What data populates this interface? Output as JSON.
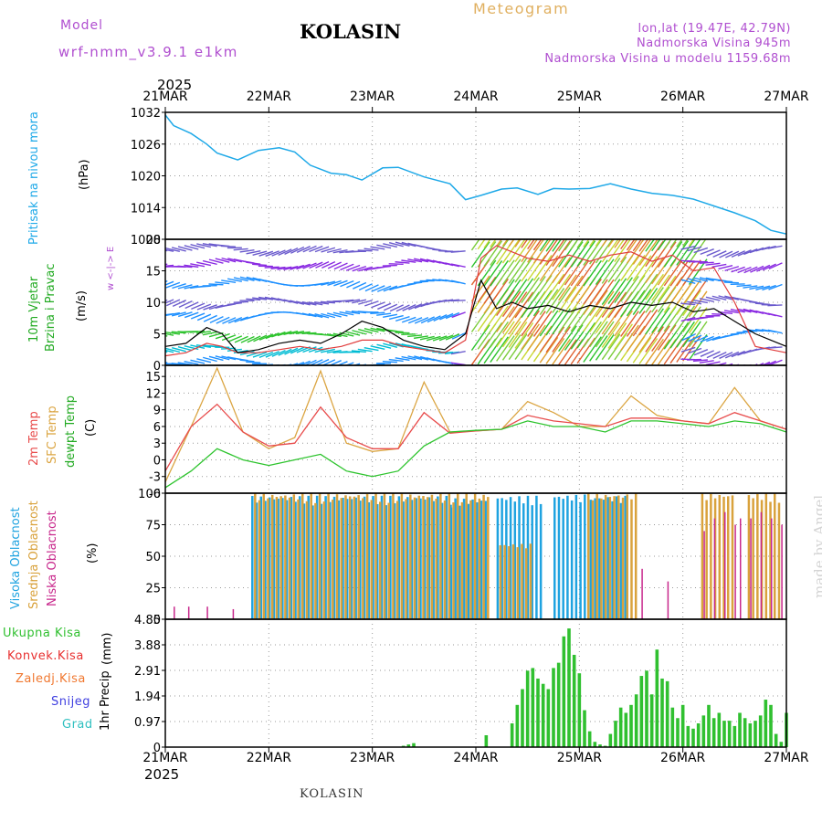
{
  "header": {
    "model_label": "Model",
    "model_name": "wrf-nmm_v3.9.1 e1km",
    "location": "KOLASIN",
    "chart_title": "Meteogram",
    "coords": "lon,lat (19.47E, 42.79N)",
    "elevation": "Nadmorska Visina 945m",
    "model_elevation": "Nadmorska Visina u modelu 1159.68m"
  },
  "time_axis": {
    "year": "2025",
    "ticks": [
      "21MAR",
      "22MAR",
      "23MAR",
      "24MAR",
      "25MAR",
      "26MAR",
      "27MAR"
    ]
  },
  "footer": {
    "location": "KOLASIN"
  },
  "watermark": "made by Angel",
  "colors": {
    "pressure": "#1fa9e8",
    "wind_speed": "#000000",
    "gust": "#e03c3c",
    "temp_2m": "#e84c4c",
    "temp_sfc": "#dba542",
    "dewpoint": "#2ec42e",
    "cloud_high": "#1fa3e0",
    "cloud_mid": "#d9a23c",
    "cloud_low": "#c8288c",
    "precip_total": "#30c030",
    "precip_conv": "#e83030",
    "precip_frozen": "#f07830",
    "snow": "#4040e0",
    "hail": "#30c0c0"
  },
  "chart_data": [
    {
      "type": "line",
      "panel": "pressure",
      "ylabel": "Pritisak na nivou mora",
      "unit": "(hPa)",
      "ylim": [
        1008,
        1032
      ],
      "yticks": [
        "1032",
        "1026",
        "1020",
        "1014",
        "1008"
      ],
      "x_days": [
        0,
        0.08,
        0.25,
        0.4,
        0.5,
        0.7,
        0.9,
        1.1,
        1.25,
        1.4,
        1.6,
        1.75,
        1.9,
        2.1,
        2.25,
        2.5,
        2.75,
        2.9,
        3.05,
        3.25,
        3.4,
        3.6,
        3.75,
        3.9,
        4.1,
        4.3,
        4.5,
        4.7,
        4.9,
        5.1,
        5.3,
        5.5,
        5.7,
        5.85,
        6.0
      ],
      "values": [
        1031.5,
        1029.5,
        1028,
        1026,
        1024.3,
        1023,
        1024.8,
        1025.3,
        1024.5,
        1022,
        1020.5,
        1020.2,
        1019.2,
        1021.5,
        1021.6,
        1019.8,
        1018.5,
        1015.5,
        1016.3,
        1017.5,
        1017.7,
        1016.5,
        1017.6,
        1017.5,
        1017.6,
        1018.5,
        1017.5,
        1016.7,
        1016.3,
        1015.6,
        1014.3,
        1013,
        1011.5,
        1009.7,
        1009
      ]
    },
    {
      "type": "line",
      "panel": "wind",
      "ylabel": "10m Vjetar",
      "ylabel2": "Brzina i Pravac",
      "unit": "(m/s)",
      "ylim": [
        0,
        20
      ],
      "yticks": [
        "20",
        "15",
        "10",
        "5",
        "0"
      ],
      "direction_legend": "w <-|-> E",
      "x_days": [
        0,
        0.2,
        0.4,
        0.55,
        0.7,
        0.9,
        1.1,
        1.3,
        1.5,
        1.7,
        1.9,
        2.1,
        2.3,
        2.5,
        2.7,
        2.9,
        3.05,
        3.2,
        3.35,
        3.5,
        3.7,
        3.9,
        4.1,
        4.3,
        4.5,
        4.7,
        4.9,
        5.1,
        5.3,
        5.5,
        5.7,
        5.85,
        6.0
      ],
      "series": [
        {
          "name": "speed",
          "values": [
            3,
            3.5,
            6,
            5,
            2,
            2.5,
            3.5,
            4,
            3.5,
            5,
            7,
            6,
            4,
            3,
            2.5,
            5,
            13.5,
            9,
            10,
            9,
            9.5,
            8.5,
            9.5,
            9,
            10,
            9.5,
            10,
            8.5,
            9,
            7,
            5,
            4,
            3
          ]
        },
        {
          "name": "gust",
          "values": [
            1.5,
            2,
            3.5,
            3,
            2,
            2,
            2.5,
            3,
            2.5,
            3,
            4,
            4,
            3,
            2.5,
            2,
            4,
            17,
            19,
            18,
            17,
            16.5,
            17.5,
            16.5,
            17.5,
            18,
            16.5,
            17.5,
            15,
            15.5,
            10,
            3,
            2.5,
            2
          ]
        }
      ]
    },
    {
      "type": "line",
      "panel": "temperature",
      "ylabel": "2m Temp",
      "ylabel2": "SFC Temp",
      "ylabel3": "dewpt Temp",
      "unit": "(C)",
      "ylim": [
        -6,
        17
      ],
      "yticks": [
        "15",
        "12",
        "9",
        "6",
        "3",
        "0",
        "-3",
        "-6"
      ],
      "x_days": [
        0,
        0.25,
        0.5,
        0.75,
        1.0,
        1.25,
        1.5,
        1.75,
        2.0,
        2.25,
        2.5,
        2.75,
        3.0,
        3.25,
        3.5,
        3.75,
        4.0,
        4.25,
        4.5,
        4.75,
        5.0,
        5.25,
        5.5,
        5.75,
        6.0
      ],
      "series": [
        {
          "name": "2m",
          "values": [
            -2,
            6,
            10,
            5,
            2.5,
            3,
            9.5,
            4,
            2,
            2,
            8.5,
            4.8,
            5.2,
            5.5,
            8,
            7,
            6.5,
            6,
            7.5,
            7.5,
            7,
            6.5,
            8.5,
            7,
            5.5
          ]
        },
        {
          "name": "sfc",
          "values": [
            -4,
            6,
            16.5,
            5,
            2,
            4,
            16,
            3,
            1.5,
            2,
            14,
            5,
            5.2,
            5.5,
            10.5,
            8.5,
            6,
            6,
            11.5,
            8,
            7,
            6.5,
            13,
            7,
            5.5
          ]
        },
        {
          "name": "dew",
          "values": [
            -5,
            -2,
            2,
            0,
            -1,
            0,
            1,
            -2,
            -3,
            -2,
            2.5,
            5,
            5.3,
            5.5,
            7,
            6,
            6,
            5,
            7,
            7,
            6.5,
            6,
            7,
            6.5,
            5
          ]
        }
      ]
    },
    {
      "type": "bar",
      "panel": "clouds",
      "ylabel": "Visoka Oblacnost",
      "ylabel2": "Srednja Oblacnost",
      "ylabel3": "Niska Oblacnost",
      "unit": "(%)",
      "ylim": [
        0,
        100
      ],
      "yticks": [
        "100",
        "75",
        "50",
        "25",
        "0"
      ],
      "series": [
        {
          "name": "high",
          "segments": [
            [
              0.83,
              2.75,
              98
            ],
            [
              2.75,
              3.1,
              96
            ],
            [
              3.2,
              3.65,
              98
            ],
            [
              3.75,
              4.05,
              99
            ],
            [
              4.1,
              4.45,
              98
            ]
          ]
        },
        {
          "name": "mid",
          "segments": [
            [
              0.83,
              3.1,
              100
            ],
            [
              3.2,
              3.5,
              60
            ],
            [
              4.05,
              4.55,
              100
            ],
            [
              5.15,
              5.45,
              100
            ],
            [
              5.6,
              5.9,
              100
            ]
          ]
        },
        {
          "name": "low",
          "bars": [
            [
              0.08,
              10
            ],
            [
              0.22,
              10
            ],
            [
              0.4,
              10
            ],
            [
              0.65,
              8
            ],
            [
              4.6,
              40
            ],
            [
              4.85,
              30
            ],
            [
              5.2,
              70
            ],
            [
              5.3,
              80
            ],
            [
              5.4,
              85
            ],
            [
              5.5,
              75
            ],
            [
              5.55,
              80
            ],
            [
              5.65,
              80
            ],
            [
              5.75,
              85
            ],
            [
              5.85,
              80
            ],
            [
              5.95,
              75
            ]
          ]
        }
      ]
    },
    {
      "type": "bar",
      "panel": "precipitation",
      "ylabel": "1hr Precip",
      "unit": "(mm)",
      "ylim": [
        0,
        4.85
      ],
      "yticks": [
        "4.85",
        "3.88",
        "2.91",
        "1.94",
        "0.97",
        "0"
      ],
      "legend": [
        "Ukupna Kisa",
        "Konvek.Kisa",
        "Zaledj.Kisa",
        "Snijeg",
        "Grad"
      ],
      "x_days": [
        2.3,
        2.35,
        2.4,
        3.1,
        3.35,
        3.4,
        3.45,
        3.5,
        3.55,
        3.6,
        3.65,
        3.7,
        3.75,
        3.8,
        3.85,
        3.9,
        3.95,
        4.0,
        4.05,
        4.1,
        4.15,
        4.2,
        4.25,
        4.3,
        4.35,
        4.4,
        4.45,
        4.5,
        4.55,
        4.6,
        4.65,
        4.7,
        4.75,
        4.8,
        4.85,
        4.9,
        4.95,
        5.0,
        5.05,
        5.1,
        5.15,
        5.2,
        5.25,
        5.3,
        5.35,
        5.4,
        5.45,
        5.5,
        5.55,
        5.6,
        5.65,
        5.7,
        5.75,
        5.8,
        5.85,
        5.9,
        5.95,
        6.0
      ],
      "values": [
        0.05,
        0.1,
        0.15,
        0.45,
        0.9,
        1.6,
        2.2,
        2.9,
        3.0,
        2.6,
        2.4,
        2.2,
        3.0,
        3.2,
        4.2,
        4.5,
        3.5,
        2.8,
        1.4,
        0.6,
        0.2,
        0.1,
        0.05,
        0.5,
        1.0,
        1.5,
        1.3,
        1.6,
        2.0,
        2.7,
        2.9,
        2.0,
        3.7,
        2.6,
        2.5,
        1.5,
        1.1,
        1.6,
        0.8,
        0.7,
        0.9,
        1.2,
        1.6,
        1.1,
        1.3,
        1.0,
        1.0,
        0.8,
        1.3,
        1.1,
        0.9,
        1.0,
        1.2,
        1.8,
        1.6,
        0.5,
        0.2,
        1.3
      ]
    }
  ]
}
